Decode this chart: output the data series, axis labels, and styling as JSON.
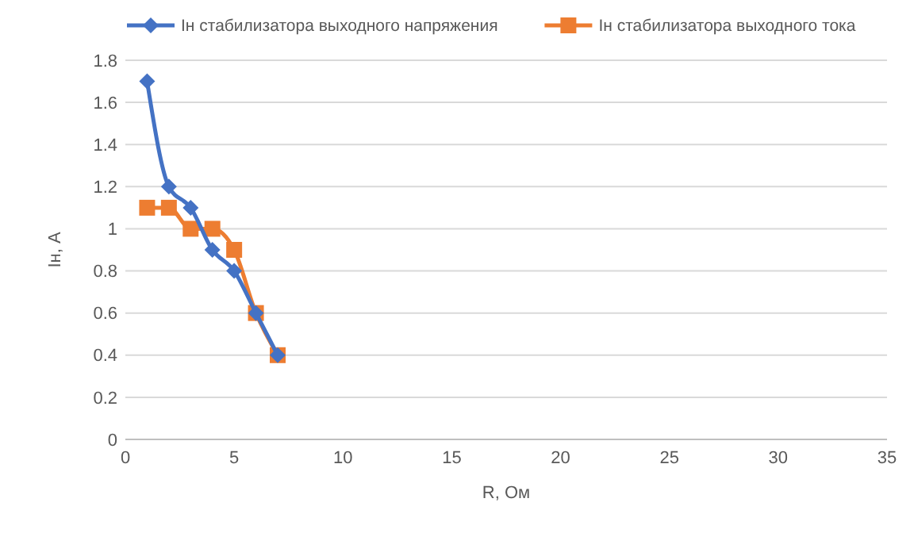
{
  "chart_data": {
    "type": "line",
    "xlabel": "R, Ом",
    "ylabel": "Iн, А",
    "xlim": [
      0,
      35
    ],
    "xticks": [
      0,
      5,
      10,
      15,
      20,
      25,
      30,
      35
    ],
    "ylim": [
      0,
      1.8
    ],
    "yticks": [
      0,
      0.2,
      0.4,
      0.6,
      0.8,
      1,
      1.2,
      1.4,
      1.6,
      1.8
    ],
    "grid": "y",
    "legend": "top",
    "x": [
      1,
      2,
      3,
      4,
      5,
      6,
      7
    ],
    "series": [
      {
        "name": "Iн стабилизатора выходного напряжения",
        "color": "#4472c4",
        "marker": "diamond",
        "values": [
          1.7,
          1.2,
          1.1,
          0.9,
          0.8,
          0.6,
          0.4
        ]
      },
      {
        "name": "Iн стабилизатора выходного тока",
        "color": "#ed7d31",
        "marker": "square",
        "values": [
          1.1,
          1.1,
          1.0,
          1.0,
          0.9,
          0.6,
          0.4
        ]
      }
    ]
  }
}
